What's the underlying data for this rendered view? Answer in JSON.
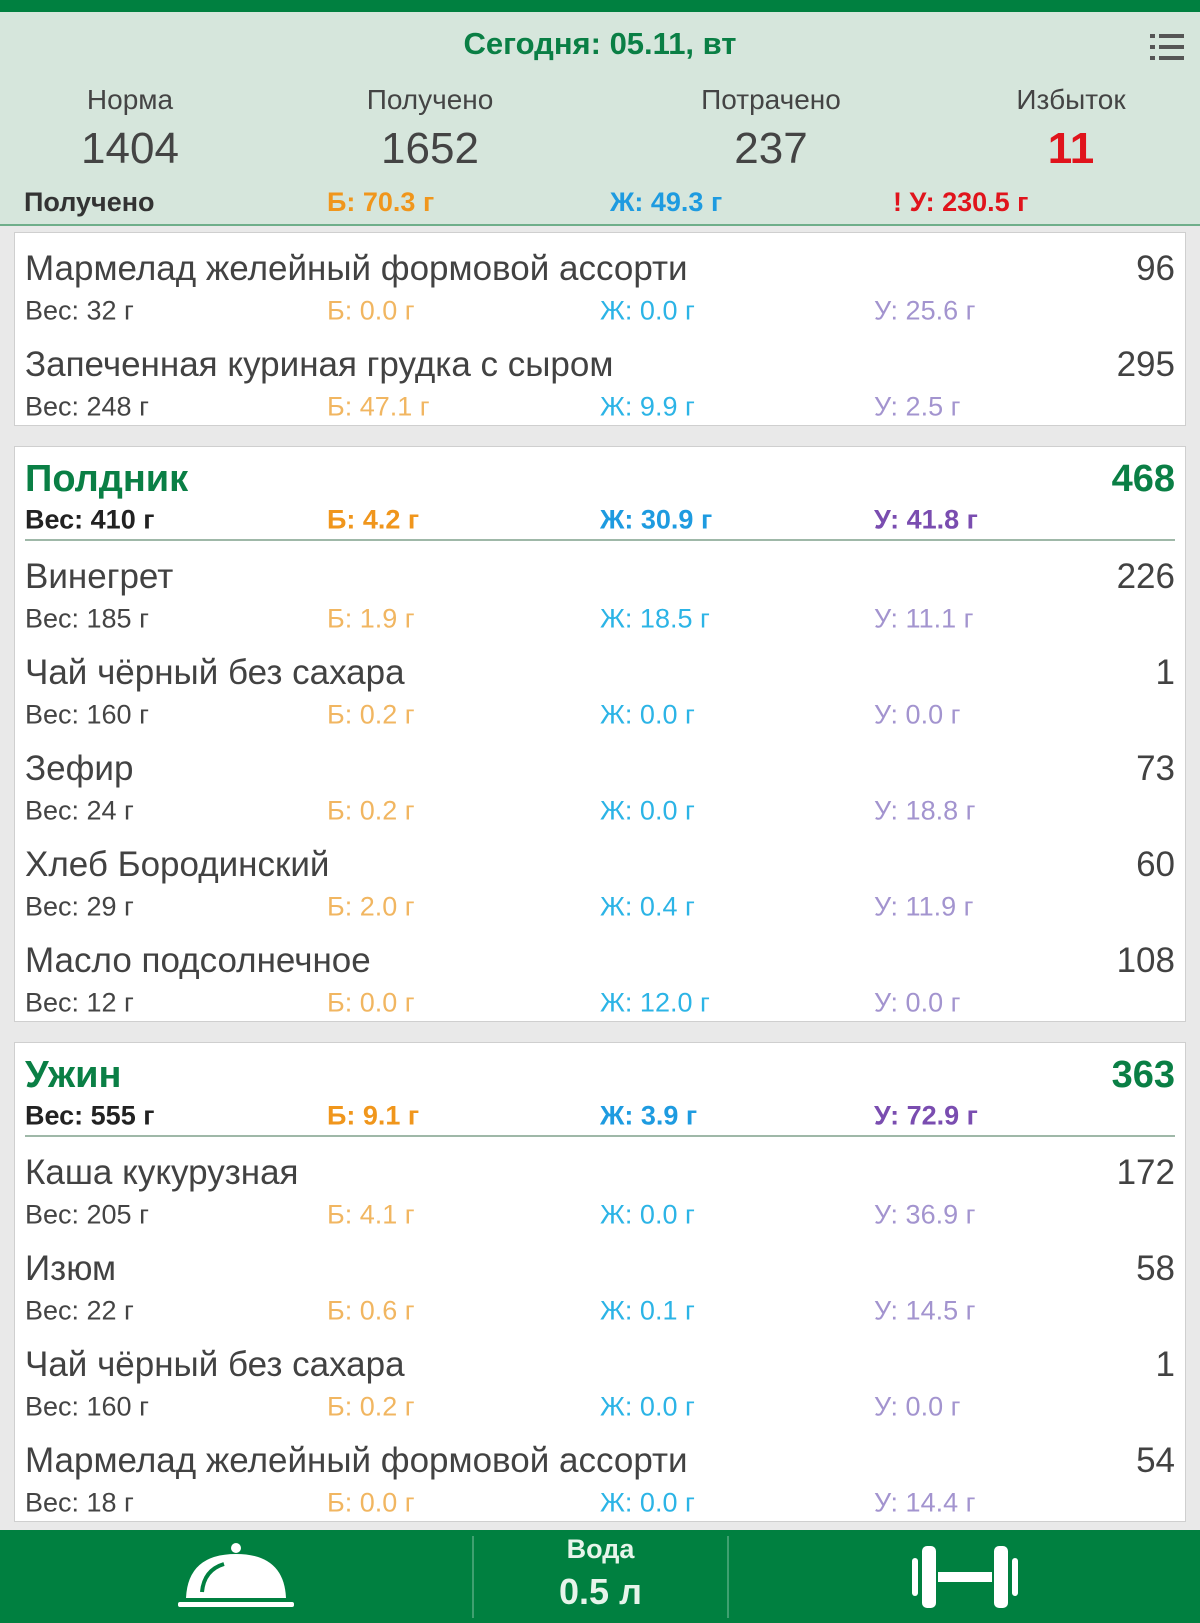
{
  "header": {
    "title": "Сегодня: 05.11, вт",
    "menu_icon": "list-icon",
    "stats": [
      {
        "label": "Норма",
        "value": "1404"
      },
      {
        "label": "Получено",
        "value": "1652"
      },
      {
        "label": "Потрачено",
        "value": "237"
      },
      {
        "label": "Избыток",
        "value": "11"
      }
    ],
    "macros": {
      "label": "Получено",
      "protein": "Б: 70.3 г",
      "fat": "Ж: 49.3 г",
      "carbs": "! У: 230.5 г"
    }
  },
  "colors": {
    "brand": "#008040",
    "excess": "#e0141c",
    "protein": "#f0961c",
    "fat": "#1e9be0",
    "carbs": "#7a4db0"
  },
  "meals": [
    {
      "title": "",
      "kcal": "",
      "items": [
        {
          "name": "Мармелад желейный формовой ассорти",
          "kcal": "96",
          "weight": "Вес: 32 г",
          "p": "Б: 0.0 г",
          "f": "Ж: 0.0 г",
          "c": "У: 25.6 г"
        },
        {
          "name": "Запеченная куриная грудка с сыром",
          "kcal": "295",
          "weight": "Вес: 248 г",
          "p": "Б: 47.1 г",
          "f": "Ж: 9.9 г",
          "c": "У: 2.5 г"
        }
      ]
    },
    {
      "title": "Полдник",
      "kcal": "468",
      "weight": "Вес: 410 г",
      "p": "Б: 4.2 г",
      "f": "Ж: 30.9 г",
      "c": "У: 41.8 г",
      "items": [
        {
          "name": "Винегрет",
          "kcal": "226",
          "weight": "Вес: 185 г",
          "p": "Б: 1.9 г",
          "f": "Ж: 18.5 г",
          "c": "У: 11.1 г"
        },
        {
          "name": "Чай чёрный без сахара",
          "kcal": "1",
          "weight": "Вес: 160 г",
          "p": "Б: 0.2 г",
          "f": "Ж: 0.0 г",
          "c": "У: 0.0 г"
        },
        {
          "name": "Зефир",
          "kcal": "73",
          "weight": "Вес: 24 г",
          "p": "Б: 0.2 г",
          "f": "Ж: 0.0 г",
          "c": "У: 18.8 г"
        },
        {
          "name": "Хлеб Бородинский",
          "kcal": "60",
          "weight": "Вес: 29 г",
          "p": "Б: 2.0 г",
          "f": "Ж: 0.4 г",
          "c": "У: 11.9 г"
        },
        {
          "name": "Масло подсолнечное",
          "kcal": "108",
          "weight": "Вес: 12 г",
          "p": "Б: 0.0 г",
          "f": "Ж: 12.0 г",
          "c": "У: 0.0 г"
        }
      ]
    },
    {
      "title": "Ужин",
      "kcal": "363",
      "weight": "Вес: 555 г",
      "p": "Б: 9.1 г",
      "f": "Ж: 3.9 г",
      "c": "У: 72.9 г",
      "items": [
        {
          "name": "Каша кукурузная",
          "kcal": "172",
          "weight": "Вес: 205 г",
          "p": "Б: 4.1 г",
          "f": "Ж: 0.0 г",
          "c": "У: 36.9 г"
        },
        {
          "name": "Изюм",
          "kcal": "58",
          "weight": "Вес: 22 г",
          "p": "Б: 0.6 г",
          "f": "Ж: 0.1 г",
          "c": "У: 14.5 г"
        },
        {
          "name": "Чай чёрный без сахара",
          "kcal": "1",
          "weight": "Вес: 160 г",
          "p": "Б: 0.2 г",
          "f": "Ж: 0.0 г",
          "c": "У: 0.0 г"
        },
        {
          "name": "Мармелад желейный формовой ассорти",
          "kcal": "54",
          "weight": "Вес: 18 г",
          "p": "Б: 0.0 г",
          "f": "Ж: 0.0 г",
          "c": "У: 14.4 г"
        }
      ]
    }
  ],
  "nav": {
    "meals_icon": "cloche-icon",
    "water_label": "Вода",
    "water_value": "0.5 л",
    "exercise_icon": "dumbbell-icon"
  }
}
